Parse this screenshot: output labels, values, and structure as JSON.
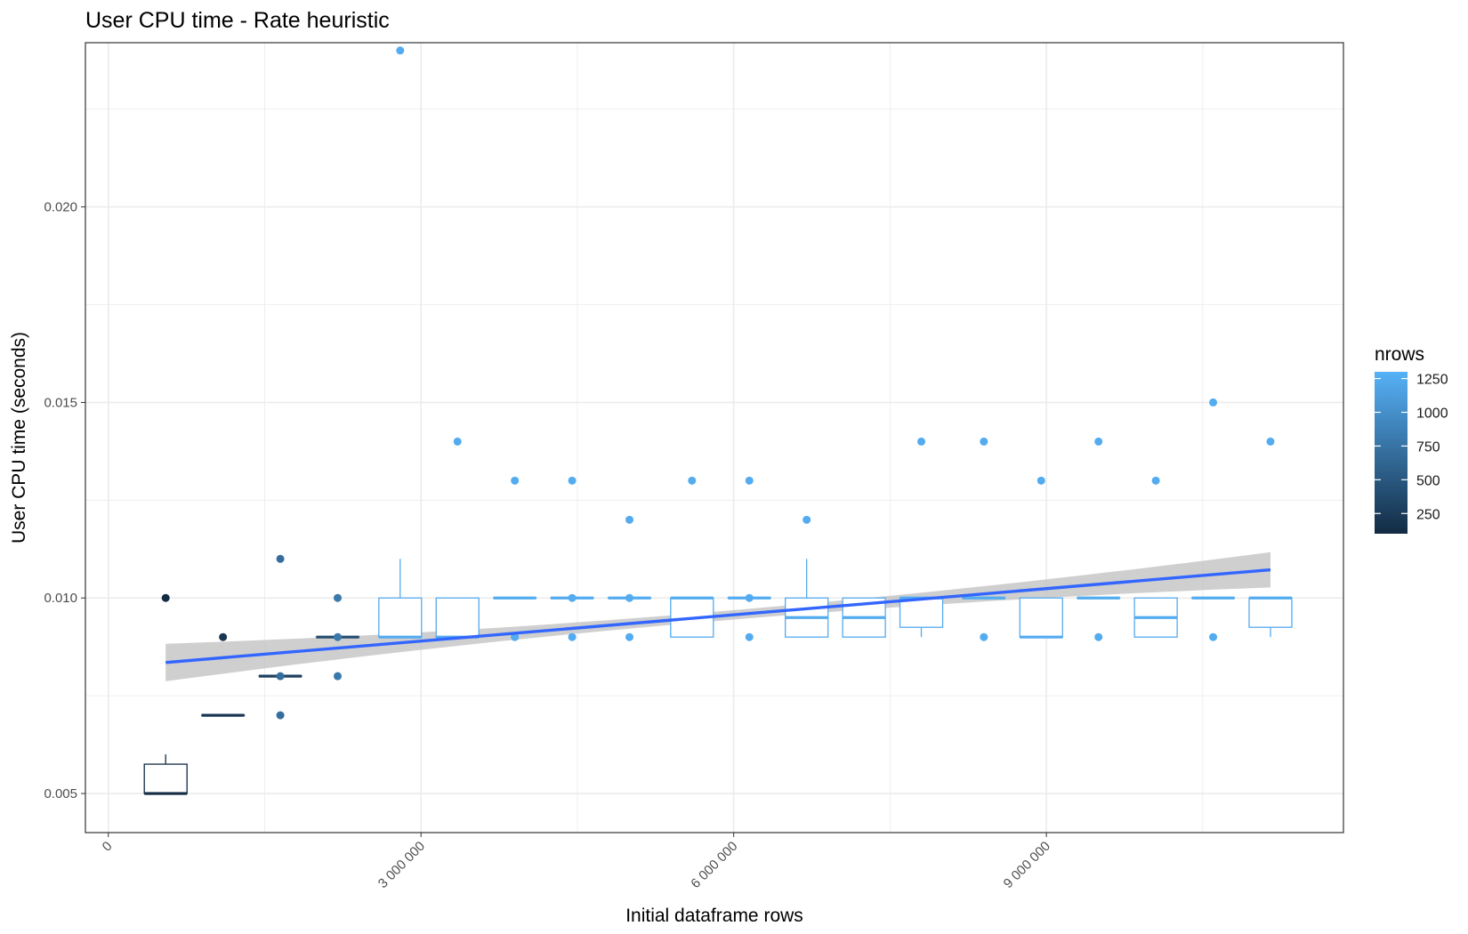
{
  "chart_data": {
    "type": "boxplot",
    "title": "User CPU time - Rate heuristic",
    "xlabel": "Initial dataframe rows",
    "ylabel": "User CPU time (seconds)",
    "xlim": [
      -220000,
      11850000
    ],
    "ylim": [
      0.004,
      0.0242
    ],
    "x_ticks": [
      0,
      3000000,
      6000000,
      9000000
    ],
    "x_tick_labels": [
      "0",
      "3 000 000",
      "6 000 000",
      "9 000 000"
    ],
    "y_ticks": [
      0.005,
      0.01,
      0.015,
      0.02
    ],
    "y_tick_labels": [
      "0.005",
      "0.010",
      "0.015",
      "0.020"
    ],
    "grid": true,
    "legend": {
      "title": "nrows",
      "position": "right",
      "min": 100,
      "max": 1300,
      "breaks": [
        250,
        500,
        750,
        1000,
        1250
      ],
      "break_labels": [
        "250",
        "500",
        "750",
        "1000",
        "1250"
      ],
      "low_color": "#132b43",
      "high_color": "#56b1f7"
    },
    "boxes": [
      {
        "x": 550000,
        "nrows": 100,
        "lower": 0.005,
        "q1": 0.005,
        "median": 0.005,
        "q3": 0.00575,
        "upper": 0.006
      },
      {
        "x": 1100000,
        "nrows": 200,
        "lower": 0.007,
        "q1": 0.007,
        "median": 0.007,
        "q3": 0.007,
        "upper": 0.007
      },
      {
        "x": 1650000,
        "nrows": 300,
        "lower": 0.008,
        "q1": 0.008,
        "median": 0.008,
        "q3": 0.008,
        "upper": 0.008
      },
      {
        "x": 2200000,
        "nrows": 400,
        "lower": 0.009,
        "q1": 0.009,
        "median": 0.009,
        "q3": 0.009,
        "upper": 0.009
      },
      {
        "x": 2800000,
        "nrows": 1250,
        "lower": 0.009,
        "q1": 0.009,
        "median": 0.009,
        "q3": 0.01,
        "upper": 0.011
      },
      {
        "x": 3350000,
        "nrows": 1250,
        "lower": 0.009,
        "q1": 0.009,
        "median": 0.009,
        "q3": 0.01,
        "upper": 0.01
      },
      {
        "x": 3900000,
        "nrows": 1250,
        "lower": 0.01,
        "q1": 0.01,
        "median": 0.01,
        "q3": 0.01,
        "upper": 0.01
      },
      {
        "x": 4450000,
        "nrows": 1250,
        "lower": 0.01,
        "q1": 0.01,
        "median": 0.01,
        "q3": 0.01,
        "upper": 0.01
      },
      {
        "x": 5000000,
        "nrows": 1250,
        "lower": 0.01,
        "q1": 0.01,
        "median": 0.01,
        "q3": 0.01,
        "upper": 0.01
      },
      {
        "x": 5600000,
        "nrows": 1250,
        "lower": 0.009,
        "q1": 0.009,
        "median": 0.01,
        "q3": 0.01,
        "upper": 0.01
      },
      {
        "x": 6150000,
        "nrows": 1250,
        "lower": 0.01,
        "q1": 0.01,
        "median": 0.01,
        "q3": 0.01,
        "upper": 0.01
      },
      {
        "x": 6700000,
        "nrows": 1250,
        "lower": 0.009,
        "q1": 0.009,
        "median": 0.0095,
        "q3": 0.01,
        "upper": 0.011
      },
      {
        "x": 7250000,
        "nrows": 1250,
        "lower": 0.009,
        "q1": 0.009,
        "median": 0.0095,
        "q3": 0.01,
        "upper": 0.01
      },
      {
        "x": 7800000,
        "nrows": 1250,
        "lower": 0.009,
        "q1": 0.00925,
        "median": 0.01,
        "q3": 0.01,
        "upper": 0.01
      },
      {
        "x": 8400000,
        "nrows": 1250,
        "lower": 0.01,
        "q1": 0.01,
        "median": 0.01,
        "q3": 0.01,
        "upper": 0.01
      },
      {
        "x": 8950000,
        "nrows": 1250,
        "lower": 0.009,
        "q1": 0.009,
        "median": 0.009,
        "q3": 0.01,
        "upper": 0.01
      },
      {
        "x": 9500000,
        "nrows": 1250,
        "lower": 0.01,
        "q1": 0.01,
        "median": 0.01,
        "q3": 0.01,
        "upper": 0.01
      },
      {
        "x": 10050000,
        "nrows": 1250,
        "lower": 0.009,
        "q1": 0.009,
        "median": 0.0095,
        "q3": 0.01,
        "upper": 0.01
      },
      {
        "x": 10600000,
        "nrows": 1250,
        "lower": 0.01,
        "q1": 0.01,
        "median": 0.01,
        "q3": 0.01,
        "upper": 0.01
      },
      {
        "x": 11150000,
        "nrows": 1250,
        "lower": 0.009,
        "q1": 0.00925,
        "median": 0.01,
        "q3": 0.01,
        "upper": 0.01
      }
    ],
    "outliers": [
      {
        "x": 550000,
        "y": 0.01,
        "nrows": 100
      },
      {
        "x": 1100000,
        "y": 0.009,
        "nrows": 200
      },
      {
        "x": 1650000,
        "y": 0.011,
        "nrows": 700
      },
      {
        "x": 1650000,
        "y": 0.008,
        "nrows": 700
      },
      {
        "x": 1650000,
        "y": 0.007,
        "nrows": 700
      },
      {
        "x": 2200000,
        "y": 0.01,
        "nrows": 800
      },
      {
        "x": 2200000,
        "y": 0.009,
        "nrows": 800
      },
      {
        "x": 2200000,
        "y": 0.008,
        "nrows": 800
      },
      {
        "x": 2800000,
        "y": 0.024,
        "nrows": 1250
      },
      {
        "x": 3350000,
        "y": 0.014,
        "nrows": 1250
      },
      {
        "x": 3900000,
        "y": 0.013,
        "nrows": 1250
      },
      {
        "x": 3900000,
        "y": 0.009,
        "nrows": 1250
      },
      {
        "x": 4450000,
        "y": 0.013,
        "nrows": 1250
      },
      {
        "x": 4450000,
        "y": 0.01,
        "nrows": 1250
      },
      {
        "x": 4450000,
        "y": 0.009,
        "nrows": 1250
      },
      {
        "x": 5000000,
        "y": 0.012,
        "nrows": 1250
      },
      {
        "x": 5000000,
        "y": 0.01,
        "nrows": 1250
      },
      {
        "x": 5000000,
        "y": 0.009,
        "nrows": 1250
      },
      {
        "x": 5600000,
        "y": 0.013,
        "nrows": 1250
      },
      {
        "x": 6150000,
        "y": 0.013,
        "nrows": 1250
      },
      {
        "x": 6150000,
        "y": 0.01,
        "nrows": 1250
      },
      {
        "x": 6150000,
        "y": 0.009,
        "nrows": 1250
      },
      {
        "x": 6700000,
        "y": 0.012,
        "nrows": 1250
      },
      {
        "x": 7800000,
        "y": 0.014,
        "nrows": 1250
      },
      {
        "x": 8400000,
        "y": 0.014,
        "nrows": 1250
      },
      {
        "x": 8400000,
        "y": 0.009,
        "nrows": 1250
      },
      {
        "x": 8950000,
        "y": 0.013,
        "nrows": 1250
      },
      {
        "x": 9500000,
        "y": 0.014,
        "nrows": 1250
      },
      {
        "x": 9500000,
        "y": 0.009,
        "nrows": 1250
      },
      {
        "x": 10050000,
        "y": 0.013,
        "nrows": 1250
      },
      {
        "x": 10600000,
        "y": 0.015,
        "nrows": 1250
      },
      {
        "x": 10600000,
        "y": 0.009,
        "nrows": 1250
      },
      {
        "x": 11150000,
        "y": 0.014,
        "nrows": 1250
      }
    ],
    "trend": {
      "x_start": 550000,
      "y_start": 0.00835,
      "x_end": 11150000,
      "y_end": 0.01072,
      "se_start": 0.00048,
      "se_mid": 0.00012,
      "se_end": 0.00045,
      "line_color": "#3366ff",
      "band_color": "#bfbfbf"
    }
  }
}
